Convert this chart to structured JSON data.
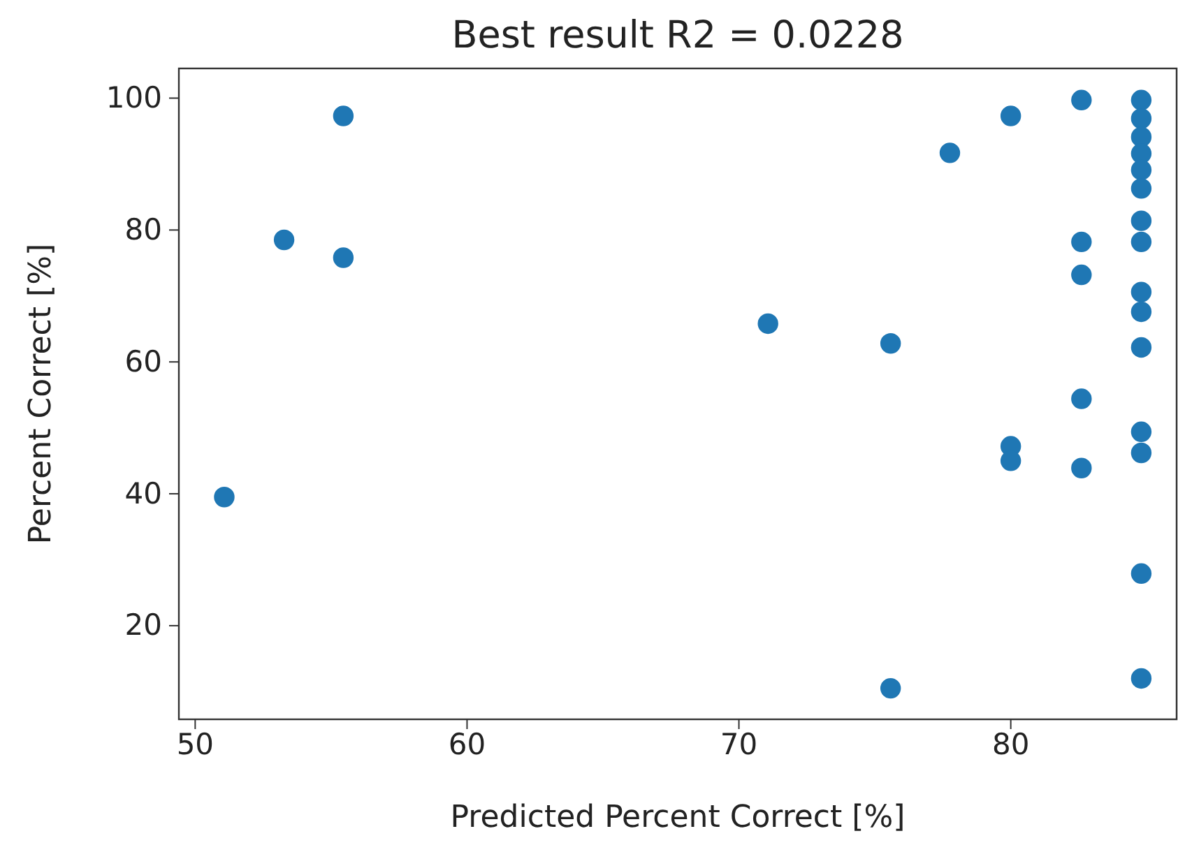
{
  "chart_data": {
    "type": "scatter",
    "title": "Best result R2 = 0.0228",
    "xlabel": "Predicted Percent Correct [%]",
    "ylabel": "Percent Correct [%]",
    "x": [
      51.07,
      53.27,
      55.45,
      55.45,
      71.07,
      75.58,
      75.58,
      77.76,
      80.0,
      80.0,
      80.0,
      82.6,
      82.6,
      82.6,
      82.6,
      82.6,
      84.8,
      84.8,
      84.8,
      84.8,
      84.8,
      84.8,
      84.8,
      84.8,
      84.8,
      84.8,
      84.8,
      84.8,
      84.8,
      84.8,
      84.8
    ],
    "series": [
      {
        "color": "#1f77b4",
        "values": [
          39.5,
          78.5,
          97.3,
          75.8,
          65.8,
          62.8,
          10.5,
          91.7,
          97.3,
          47.2,
          45.0,
          99.7,
          78.2,
          73.2,
          54.4,
          43.9,
          99.7,
          96.9,
          94.1,
          91.6,
          89.1,
          86.3,
          81.4,
          78.2,
          70.6,
          67.6,
          62.2,
          49.4,
          46.2,
          27.9,
          12.0
        ]
      }
    ],
    "xlim": [
      49.4,
      86.1
    ],
    "ylim": [
      5.8,
      104.5
    ],
    "xticks": [
      50,
      60,
      70,
      80
    ],
    "yticks": [
      20,
      40,
      60,
      80,
      100
    ],
    "marker": "circle",
    "grid": false
  }
}
